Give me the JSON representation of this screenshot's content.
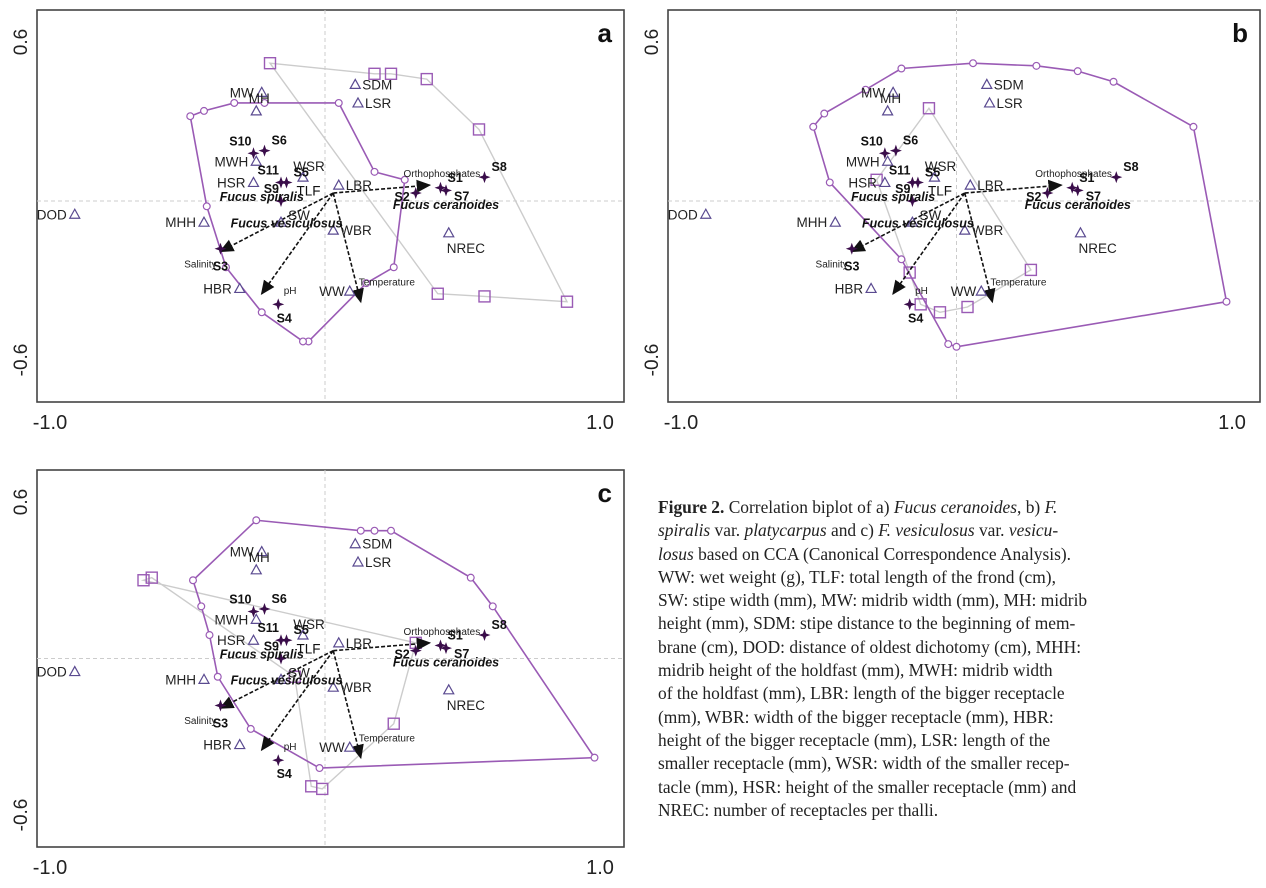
{
  "chart_data": [
    {
      "type": "scatter",
      "panel_label": "a",
      "xlim": [
        -1.0,
        1.0
      ],
      "ylim": [
        -0.6,
        0.6
      ],
      "x_ticks": [
        "-1.0",
        "1.0"
      ],
      "y_ticks": [
        "0.6",
        "-0.6"
      ],
      "grid": "dashed zero lines",
      "stations": [
        {
          "label": "S1",
          "x": 0.42,
          "y": 0.05
        },
        {
          "label": "S2",
          "x": 0.33,
          "y": 0.03
        },
        {
          "label": "S3",
          "x": -0.38,
          "y": -0.18
        },
        {
          "label": "S4",
          "x": -0.17,
          "y": -0.39
        },
        {
          "label": "S5",
          "x": -0.14,
          "y": 0.07
        },
        {
          "label": "S6",
          "x": -0.22,
          "y": 0.19
        },
        {
          "label": "S7",
          "x": 0.44,
          "y": 0.04
        },
        {
          "label": "S8",
          "x": 0.58,
          "y": 0.09
        },
        {
          "label": "S9",
          "x": -0.16,
          "y": 0.0
        },
        {
          "label": "S10",
          "x": -0.26,
          "y": 0.18
        },
        {
          "label": "S11",
          "x": -0.16,
          "y": 0.07
        }
      ],
      "variables": [
        {
          "label": "MW",
          "x": -0.23,
          "y": 0.41
        },
        {
          "label": "MH",
          "x": -0.25,
          "y": 0.34
        },
        {
          "label": "SDM",
          "x": 0.11,
          "y": 0.44
        },
        {
          "label": "LSR",
          "x": 0.12,
          "y": 0.37
        },
        {
          "label": "MWH",
          "x": -0.25,
          "y": 0.15
        },
        {
          "label": "WSR",
          "x": -0.08,
          "y": 0.09
        },
        {
          "label": "LBR",
          "x": 0.05,
          "y": 0.06
        },
        {
          "label": "HSR",
          "x": -0.26,
          "y": 0.07
        },
        {
          "label": "DOD",
          "x": -0.91,
          "y": -0.05
        },
        {
          "label": "MHH",
          "x": -0.44,
          "y": -0.08
        },
        {
          "label": "WBR",
          "x": 0.03,
          "y": -0.11
        },
        {
          "label": "NREC",
          "x": 0.45,
          "y": -0.12
        },
        {
          "label": "HBR",
          "x": -0.31,
          "y": -0.33
        },
        {
          "label": "WW",
          "x": 0.09,
          "y": -0.34
        },
        {
          "label": "SW",
          "x": -0.16,
          "y": -0.08
        }
      ],
      "species": [
        {
          "label": "Fucus spiralis",
          "x": -0.23,
          "y": 0.0
        },
        {
          "label": "Fucus vesiculosus",
          "x": -0.14,
          "y": -0.1
        },
        {
          "label": "Fucus ceranoides",
          "x": 0.44,
          "y": -0.03
        },
        {
          "label": "TLF",
          "x": -0.06,
          "y": 0.02
        }
      ],
      "arrows": [
        {
          "label": "Orthophosphates",
          "x": 0.38,
          "y": 0.06
        },
        {
          "label": "Salinity",
          "x": -0.38,
          "y": -0.19
        },
        {
          "label": "pH",
          "x": -0.23,
          "y": -0.35
        },
        {
          "label": "Temperature",
          "x": 0.13,
          "y": -0.38
        }
      ],
      "hull_circle": [
        [
          -0.49,
          0.32
        ],
        [
          -0.44,
          0.34
        ],
        [
          -0.33,
          0.37
        ],
        [
          -0.22,
          0.37
        ],
        [
          0.05,
          0.37
        ],
        [
          0.18,
          0.11
        ],
        [
          0.29,
          0.08
        ],
        [
          0.25,
          -0.25
        ],
        [
          0.15,
          -0.31
        ],
        [
          -0.06,
          -0.53
        ],
        [
          -0.08,
          -0.53
        ],
        [
          -0.23,
          -0.42
        ],
        [
          -0.36,
          -0.25
        ],
        [
          -0.43,
          -0.02
        ]
      ],
      "hull_square": [
        [
          -0.2,
          0.52
        ],
        [
          0.18,
          0.48
        ],
        [
          0.24,
          0.48
        ],
        [
          0.37,
          0.46
        ],
        [
          0.56,
          0.27
        ],
        [
          0.88,
          -0.38
        ],
        [
          0.58,
          -0.36
        ],
        [
          0.41,
          -0.35
        ]
      ]
    },
    {
      "type": "scatter",
      "panel_label": "b",
      "xlim": [
        -1.0,
        1.0
      ],
      "ylim": [
        -0.6,
        0.6
      ],
      "x_ticks": [
        "-1.0",
        "1.0"
      ],
      "y_ticks": [
        "0.6",
        "-0.6"
      ],
      "grid": "dashed zero lines",
      "stations": [
        {
          "label": "S1",
          "x": 0.42,
          "y": 0.05
        },
        {
          "label": "S2",
          "x": 0.33,
          "y": 0.03
        },
        {
          "label": "S3",
          "x": -0.38,
          "y": -0.18
        },
        {
          "label": "S4",
          "x": -0.17,
          "y": -0.39
        },
        {
          "label": "S5",
          "x": -0.14,
          "y": 0.07
        },
        {
          "label": "S6",
          "x": -0.22,
          "y": 0.19
        },
        {
          "label": "S7",
          "x": 0.44,
          "y": 0.04
        },
        {
          "label": "S8",
          "x": 0.58,
          "y": 0.09
        },
        {
          "label": "S9",
          "x": -0.16,
          "y": 0.0
        },
        {
          "label": "S10",
          "x": -0.26,
          "y": 0.18
        },
        {
          "label": "S11",
          "x": -0.16,
          "y": 0.07
        }
      ],
      "variables": [
        {
          "label": "MW",
          "x": -0.23,
          "y": 0.41
        },
        {
          "label": "MH",
          "x": -0.25,
          "y": 0.34
        },
        {
          "label": "SDM",
          "x": 0.11,
          "y": 0.44
        },
        {
          "label": "LSR",
          "x": 0.12,
          "y": 0.37
        },
        {
          "label": "MWH",
          "x": -0.25,
          "y": 0.15
        },
        {
          "label": "WSR",
          "x": -0.08,
          "y": 0.09
        },
        {
          "label": "LBR",
          "x": 0.05,
          "y": 0.06
        },
        {
          "label": "HSR",
          "x": -0.26,
          "y": 0.07
        },
        {
          "label": "DOD",
          "x": -0.91,
          "y": -0.05
        },
        {
          "label": "MHH",
          "x": -0.44,
          "y": -0.08
        },
        {
          "label": "WBR",
          "x": 0.03,
          "y": -0.11
        },
        {
          "label": "NREC",
          "x": 0.45,
          "y": -0.12
        },
        {
          "label": "HBR",
          "x": -0.31,
          "y": -0.33
        },
        {
          "label": "WW",
          "x": 0.09,
          "y": -0.34
        },
        {
          "label": "SW",
          "x": -0.16,
          "y": -0.08
        }
      ],
      "species": [
        {
          "label": "Fucus spiralis",
          "x": -0.23,
          "y": 0.0
        },
        {
          "label": "Fucus vesiculosus",
          "x": -0.14,
          "y": -0.1
        },
        {
          "label": "Fucus ceranoides",
          "x": 0.44,
          "y": -0.03
        },
        {
          "label": "TLF",
          "x": -0.06,
          "y": 0.02
        }
      ],
      "arrows": [
        {
          "label": "Orthophosphates",
          "x": 0.38,
          "y": 0.06
        },
        {
          "label": "Salinity",
          "x": -0.38,
          "y": -0.19
        },
        {
          "label": "pH",
          "x": -0.23,
          "y": -0.35
        },
        {
          "label": "Temperature",
          "x": 0.13,
          "y": -0.38
        }
      ],
      "hull_circle": [
        [
          -0.33,
          0.42
        ],
        [
          -0.2,
          0.5
        ],
        [
          0.06,
          0.52
        ],
        [
          0.29,
          0.51
        ],
        [
          0.44,
          0.49
        ],
        [
          0.57,
          0.45
        ],
        [
          0.86,
          0.28
        ],
        [
          0.98,
          -0.38
        ],
        [
          0.0,
          -0.55
        ],
        [
          -0.03,
          -0.54
        ],
        [
          -0.2,
          -0.22
        ],
        [
          -0.46,
          0.07
        ],
        [
          -0.52,
          0.28
        ],
        [
          -0.48,
          0.33
        ]
      ],
      "hull_square": [
        [
          -0.1,
          0.35
        ],
        [
          -0.29,
          0.08
        ],
        [
          -0.17,
          -0.27
        ],
        [
          -0.13,
          -0.39
        ],
        [
          -0.06,
          -0.42
        ],
        [
          0.04,
          -0.4
        ],
        [
          0.27,
          -0.26
        ]
      ]
    },
    {
      "type": "scatter",
      "panel_label": "c",
      "xlim": [
        -1.0,
        1.0
      ],
      "ylim": [
        -0.6,
        0.6
      ],
      "x_ticks": [
        "-1.0",
        "1.0"
      ],
      "y_ticks": [
        "0.6",
        "-0.6"
      ],
      "grid": "dashed zero lines",
      "stations": [
        {
          "label": "S1",
          "x": 0.42,
          "y": 0.05
        },
        {
          "label": "S2",
          "x": 0.33,
          "y": 0.03
        },
        {
          "label": "S3",
          "x": -0.38,
          "y": -0.18
        },
        {
          "label": "S4",
          "x": -0.17,
          "y": -0.39
        },
        {
          "label": "S5",
          "x": -0.14,
          "y": 0.07
        },
        {
          "label": "S6",
          "x": -0.22,
          "y": 0.19
        },
        {
          "label": "S7",
          "x": 0.44,
          "y": 0.04
        },
        {
          "label": "S8",
          "x": 0.58,
          "y": 0.09
        },
        {
          "label": "S9",
          "x": -0.16,
          "y": 0.0
        },
        {
          "label": "S10",
          "x": -0.26,
          "y": 0.18
        },
        {
          "label": "S11",
          "x": -0.16,
          "y": 0.07
        }
      ],
      "variables": [
        {
          "label": "MW",
          "x": -0.23,
          "y": 0.41
        },
        {
          "label": "MH",
          "x": -0.25,
          "y": 0.34
        },
        {
          "label": "SDM",
          "x": 0.11,
          "y": 0.44
        },
        {
          "label": "LSR",
          "x": 0.12,
          "y": 0.37
        },
        {
          "label": "MWH",
          "x": -0.25,
          "y": 0.15
        },
        {
          "label": "WSR",
          "x": -0.08,
          "y": 0.09
        },
        {
          "label": "LBR",
          "x": 0.05,
          "y": 0.06
        },
        {
          "label": "HSR",
          "x": -0.26,
          "y": 0.07
        },
        {
          "label": "DOD",
          "x": -0.91,
          "y": -0.05
        },
        {
          "label": "MHH",
          "x": -0.44,
          "y": -0.08
        },
        {
          "label": "WBR",
          "x": 0.03,
          "y": -0.11
        },
        {
          "label": "NREC",
          "x": 0.45,
          "y": -0.12
        },
        {
          "label": "HBR",
          "x": -0.31,
          "y": -0.33
        },
        {
          "label": "WW",
          "x": 0.09,
          "y": -0.34
        },
        {
          "label": "SW",
          "x": -0.16,
          "y": -0.08
        }
      ],
      "species": [
        {
          "label": "Fucus spiralis",
          "x": -0.23,
          "y": 0.0
        },
        {
          "label": "Fucus vesiculosus",
          "x": -0.14,
          "y": -0.1
        },
        {
          "label": "Fucus ceranoides",
          "x": 0.44,
          "y": -0.03
        },
        {
          "label": "TLF",
          "x": -0.06,
          "y": 0.02
        }
      ],
      "arrows": [
        {
          "label": "Orthophosphates",
          "x": 0.38,
          "y": 0.06
        },
        {
          "label": "Salinity",
          "x": -0.38,
          "y": -0.19
        },
        {
          "label": "pH",
          "x": -0.23,
          "y": -0.35
        },
        {
          "label": "Temperature",
          "x": 0.13,
          "y": -0.38
        }
      ],
      "hull_circle": [
        [
          -0.25,
          0.53
        ],
        [
          0.13,
          0.49
        ],
        [
          0.18,
          0.49
        ],
        [
          0.24,
          0.49
        ],
        [
          0.53,
          0.31
        ],
        [
          0.61,
          0.2
        ],
        [
          0.98,
          -0.38
        ],
        [
          -0.02,
          -0.42
        ],
        [
          -0.27,
          -0.27
        ],
        [
          -0.39,
          -0.07
        ],
        [
          -0.42,
          0.09
        ],
        [
          -0.45,
          0.2
        ],
        [
          -0.48,
          0.3
        ]
      ],
      "hull_square": [
        [
          -0.66,
          0.3
        ],
        [
          -0.63,
          0.31
        ],
        [
          -0.11,
          -0.07
        ],
        [
          -0.05,
          -0.49
        ],
        [
          -0.01,
          -0.5
        ],
        [
          0.25,
          -0.25
        ],
        [
          0.33,
          0.06
        ]
      ]
    }
  ],
  "caption": {
    "lines": [
      [
        {
          "t": "Figure 2.",
          "s": "b"
        },
        {
          "t": " Correlation biplot of a) "
        },
        {
          "t": "Fucus ceranoides",
          "s": "i"
        },
        {
          "t": ", b) "
        },
        {
          "t": "F.",
          "s": "i"
        }
      ],
      [
        {
          "t": "spiralis",
          "s": "i"
        },
        {
          "t": " var. "
        },
        {
          "t": "platycarpus",
          "s": "i"
        },
        {
          "t": " and c) "
        },
        {
          "t": "F. vesiculosus",
          "s": "i"
        },
        {
          "t": " var. "
        },
        {
          "t": "vesicu-",
          "s": "i"
        }
      ],
      [
        {
          "t": "losus",
          "s": "i"
        },
        {
          "t": " based on CCA (Canonical Correspondence Analysis)."
        }
      ],
      [
        {
          "t": "WW: wet weight (g), TLF: total length of the frond (cm),"
        }
      ],
      [
        {
          "t": "SW: stipe width (mm), MW: midrib width (mm), MH: midrib"
        }
      ],
      [
        {
          "t": "height (mm), SDM: stipe distance to the beginning of mem-"
        }
      ],
      [
        {
          "t": "brane (cm), DOD: distance of oldest dichotomy (cm), MHH:"
        }
      ],
      [
        {
          "t": "midrib height of the holdfast (mm), MWH: midrib width"
        }
      ],
      [
        {
          "t": "of the holdfast (mm), LBR: length of the bigger receptacle"
        }
      ],
      [
        {
          "t": "(mm), WBR: width of the bigger receptacle (mm), HBR:"
        }
      ],
      [
        {
          "t": "height of the bigger receptacle (mm), LSR: length of the"
        }
      ],
      [
        {
          "t": "smaller receptacle (mm), WSR: width of  the smaller recep-"
        }
      ],
      [
        {
          "t": "tacle (mm), HSR: height of the smaller receptacle (mm) and"
        }
      ],
      [
        {
          "t": "NREC: number of receptacles per thalli."
        }
      ]
    ]
  }
}
